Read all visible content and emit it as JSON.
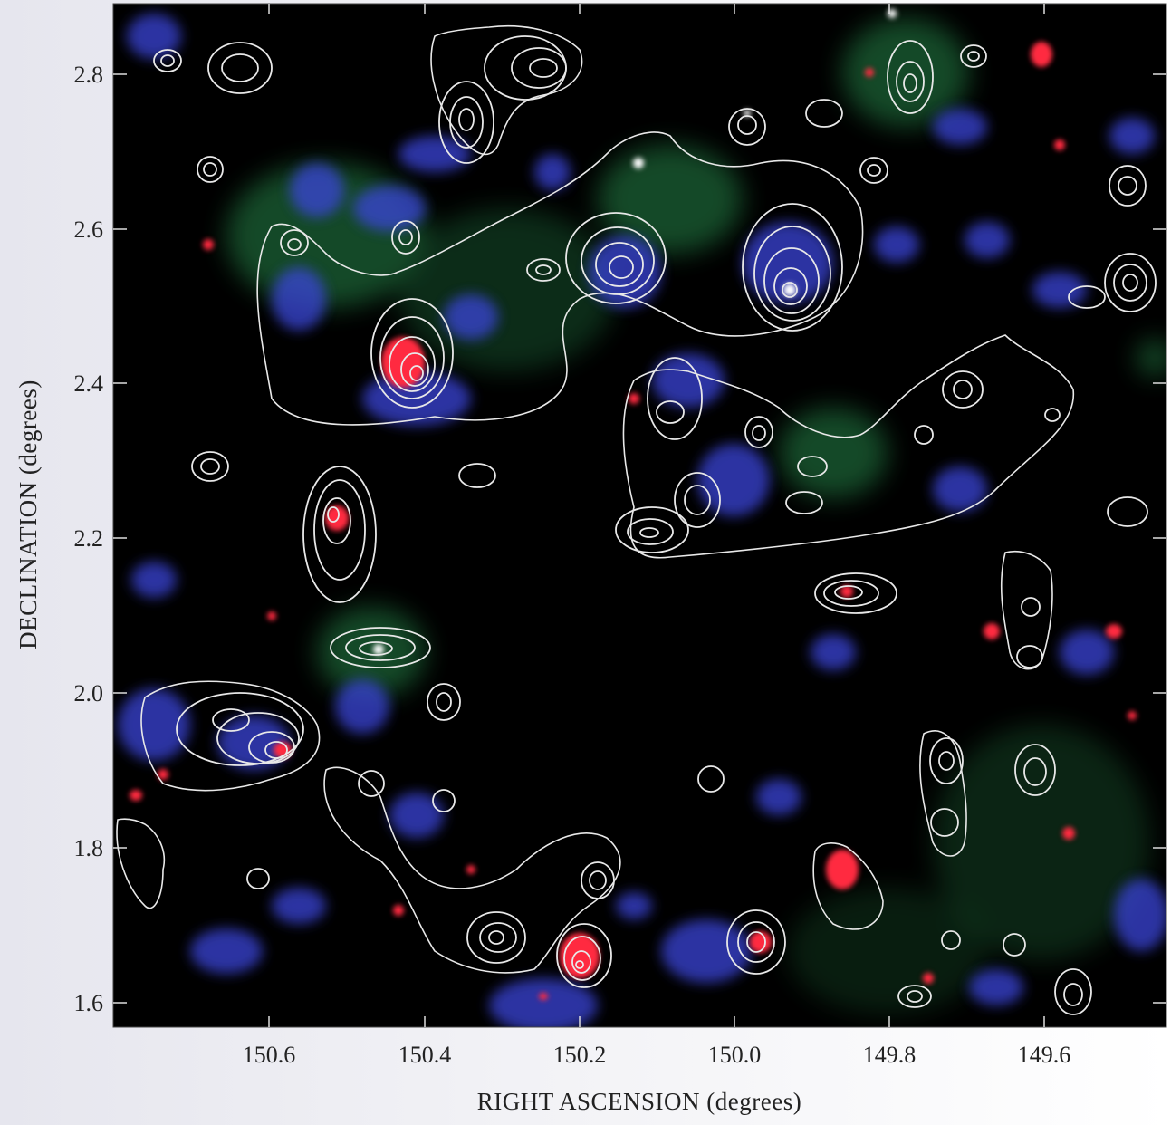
{
  "figure": {
    "xlabel": "RIGHT ASCENSION (degrees)",
    "ylabel": "DECLINATION (degrees)",
    "x_ticks": [
      "150.6",
      "150.4",
      "150.2",
      "150.0",
      "149.8",
      "149.6"
    ],
    "y_ticks": [
      "2.8",
      "2.6",
      "2.4",
      "2.2",
      "2.0",
      "1.8",
      "1.6"
    ],
    "x_axis_direction": "decreasing to the right",
    "colors": {
      "background": "#000000",
      "contours": "#e8e8e8",
      "red_emission": "#ff2a40",
      "blue_emission": "#3a45d8",
      "green_emission": "#2fa45a",
      "page_background": "#eeeef3"
    }
  }
}
